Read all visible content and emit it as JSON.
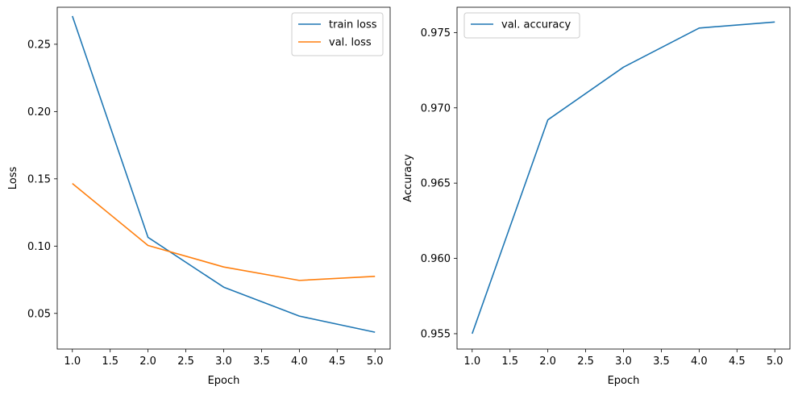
{
  "chart_data": [
    {
      "type": "line",
      "xlabel": "Epoch",
      "ylabel": "Loss",
      "x": [
        1,
        2,
        3,
        4,
        5
      ],
      "xlim": [
        0.8,
        5.2
      ],
      "ylim": [
        0.0235,
        0.2775
      ],
      "xticks": [
        "1.0",
        "1.5",
        "2.0",
        "2.5",
        "3.0",
        "3.5",
        "4.0",
        "4.5",
        "5.0"
      ],
      "xtick_values": [
        1.0,
        1.5,
        2.0,
        2.5,
        3.0,
        3.5,
        4.0,
        4.5,
        5.0
      ],
      "yticks": [
        "0.05",
        "0.10",
        "0.15",
        "0.20",
        "0.25"
      ],
      "ytick_values": [
        0.05,
        0.1,
        0.15,
        0.2,
        0.25
      ],
      "grid": false,
      "legend": "top-right",
      "series": [
        {
          "name": "train loss",
          "color": "#1f77b4",
          "values": [
            0.271,
            0.1065,
            0.0695,
            0.048,
            0.036
          ]
        },
        {
          "name": "val. loss",
          "color": "#ff7f0e",
          "values": [
            0.1465,
            0.1005,
            0.0845,
            0.0745,
            0.0775
          ]
        }
      ]
    },
    {
      "type": "line",
      "xlabel": "Epoch",
      "ylabel": "Accuracy",
      "x": [
        1,
        2,
        3,
        4,
        5
      ],
      "xlim": [
        0.8,
        5.2
      ],
      "ylim": [
        0.95398,
        0.97668
      ],
      "xticks": [
        "1.0",
        "1.5",
        "2.0",
        "2.5",
        "3.0",
        "3.5",
        "4.0",
        "4.5",
        "5.0"
      ],
      "xtick_values": [
        1.0,
        1.5,
        2.0,
        2.5,
        3.0,
        3.5,
        4.0,
        4.5,
        5.0
      ],
      "yticks": [
        "0.955",
        "0.960",
        "0.965",
        "0.970",
        "0.975"
      ],
      "ytick_values": [
        0.955,
        0.96,
        0.965,
        0.97,
        0.975
      ],
      "grid": false,
      "legend": "top-left",
      "series": [
        {
          "name": "val. accuracy",
          "color": "#1f77b4",
          "values": [
            0.955,
            0.9692,
            0.9727,
            0.9753,
            0.9757
          ]
        }
      ]
    }
  ]
}
